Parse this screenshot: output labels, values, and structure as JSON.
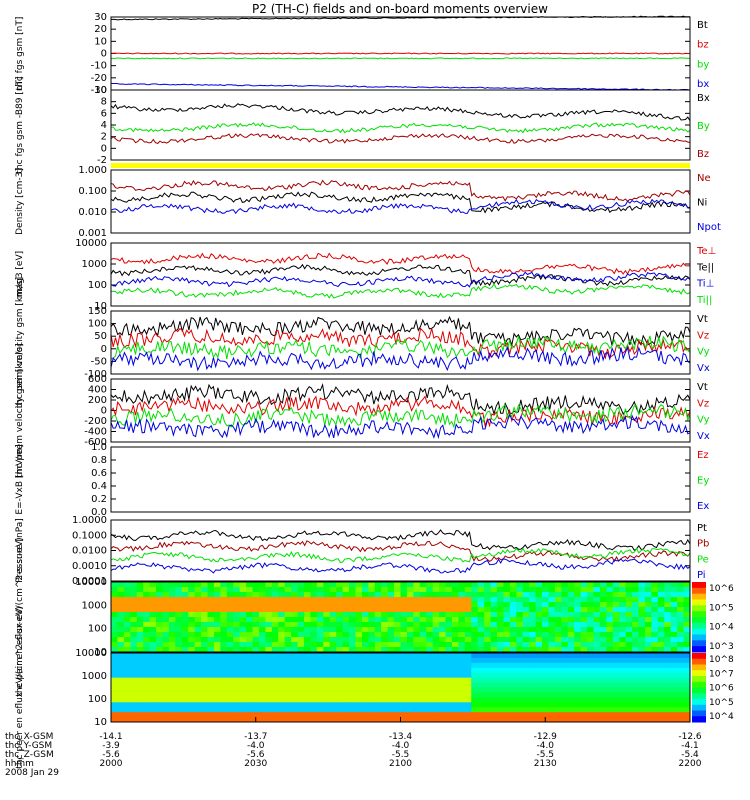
{
  "title": "P2 (TH-C) fields and on-board moments overview",
  "colors": {
    "black": "#000000",
    "red": "#e00000",
    "green": "#00e000",
    "blue": "#0000e0",
    "darkred": "#a00000",
    "yellow": "#ffff00"
  },
  "x_axis": {
    "row_labels": [
      "thc_X-GSM",
      "thc_Y-GSM",
      "thc_Z-GSM",
      "hhmm",
      "2008 Jan 29"
    ],
    "ticks": [
      {
        "vals": [
          "-14.1",
          "-3.9",
          "-5.6",
          "2000"
        ]
      },
      {
        "vals": [
          "-13.7",
          "-4.0",
          "-5.6",
          "2030"
        ]
      },
      {
        "vals": [
          "-13.4",
          "-4.0",
          "-5.5",
          "2100"
        ]
      },
      {
        "vals": [
          "-12.9",
          "-4.0",
          "-5.5",
          "2130"
        ]
      },
      {
        "vals": [
          "-12.6",
          "-4.1",
          "-5.4",
          "2200"
        ]
      }
    ]
  },
  "chart_data": [
    {
      "type": "line",
      "ylabel": "thc fgs gsm [nT]",
      "ylim": [
        -30,
        30
      ],
      "yticks": [
        "30",
        "20",
        "10",
        "0",
        "-10",
        "-20",
        "-30"
      ],
      "series": [
        {
          "name": "Bt",
          "color": "black",
          "level": 28
        },
        {
          "name": "bz",
          "color": "red",
          "level": 0
        },
        {
          "name": "by",
          "color": "green",
          "level": -4
        },
        {
          "name": "bx",
          "color": "blue",
          "level": -25
        }
      ]
    },
    {
      "type": "line",
      "ylabel": "thc fgs gsm -B89 [nT]",
      "ylim": [
        -3,
        10
      ],
      "yticks": [
        "10",
        "8",
        "6",
        "4",
        "2",
        "0",
        "-2"
      ],
      "series": [
        {
          "name": "Bx",
          "color": "black",
          "level": 7
        },
        {
          "name": "By",
          "color": "green",
          "level": 3
        },
        {
          "name": "Bz",
          "color": "darkred",
          "level": 1
        }
      ]
    },
    {
      "type": "line",
      "ylabel": "Density [cm-3]",
      "scale": "log",
      "ylim": [
        0.001,
        1
      ],
      "yticks": [
        "1.000",
        "0.100",
        "0.010",
        "0.001"
      ],
      "series": [
        {
          "name": "Ne",
          "color": "darkred"
        },
        {
          "name": "Ni",
          "color": "black"
        },
        {
          "name": "Npot",
          "color": "blue"
        }
      ]
    },
    {
      "type": "line",
      "ylabel": "mag3 [eV]",
      "scale": "log",
      "ylim": [
        10,
        10000
      ],
      "yticks": [
        "10000",
        "1000",
        "100",
        "10"
      ],
      "series": [
        {
          "name": "Te⊥",
          "color": "red"
        },
        {
          "name": "Te||",
          "color": "black"
        },
        {
          "name": "Ti⊥",
          "color": "blue"
        },
        {
          "name": "Ti||",
          "color": "green"
        }
      ]
    },
    {
      "type": "line",
      "ylabel": "thc peim velocity gsm [km/s]",
      "ylim": [
        -100,
        150
      ],
      "yticks": [
        "150",
        "100",
        "50",
        "0",
        "-50",
        "-100"
      ],
      "series": [
        {
          "name": "Vt",
          "color": "black"
        },
        {
          "name": "Vz",
          "color": "red"
        },
        {
          "name": "Vy",
          "color": "green"
        },
        {
          "name": "Vx",
          "color": "blue"
        }
      ]
    },
    {
      "type": "line",
      "ylabel": "thc peem velocity gsm [km/s]",
      "ylim": [
        -600,
        600
      ],
      "yticks": [
        "600",
        "400",
        "200",
        "0",
        "-200",
        "-400",
        "-600"
      ],
      "series": [
        {
          "name": "Vt",
          "color": "black"
        },
        {
          "name": "Vz",
          "color": "red"
        },
        {
          "name": "Vy",
          "color": "green"
        },
        {
          "name": "Vx",
          "color": "blue"
        }
      ]
    },
    {
      "type": "line",
      "ylabel": "E=-VxB [mV/m]",
      "ylim": [
        0,
        1
      ],
      "yticks": [
        "1.0",
        "0.8",
        "0.6",
        "0.4",
        "0.2",
        "0.0"
      ],
      "series": [
        {
          "name": "Ez",
          "color": "red"
        },
        {
          "name": "Ey",
          "color": "green"
        },
        {
          "name": "Ex",
          "color": "blue"
        }
      ]
    },
    {
      "type": "line",
      "ylabel": "Pressure [nPa]",
      "scale": "log",
      "ylim": [
        0.0001,
        1
      ],
      "yticks": [
        "1.0000",
        "0.1000",
        "0.0100",
        "0.0010",
        "0.0001"
      ],
      "series": [
        {
          "name": "Pt",
          "color": "black"
        },
        {
          "name": "Pb",
          "color": "darkred"
        },
        {
          "name": "Pe",
          "color": "green"
        },
        {
          "name": "Pi",
          "color": "blue"
        }
      ]
    },
    {
      "type": "heatmap",
      "ylabel": "thc peir en eflux eV/(cm^2-s-sr-eV)",
      "scale": "log",
      "ylim": [
        10,
        10000
      ],
      "yticks": [
        "10000",
        "1000",
        "100",
        "10"
      ],
      "colorbar": [
        "10^6",
        "10^5",
        "10^4",
        "10^3"
      ]
    },
    {
      "type": "heatmap",
      "ylabel": "thc peer en eflux eV/(cm^2-s-sr-eV)",
      "scale": "log",
      "ylim": [
        10,
        10000
      ],
      "yticks": [
        "10000",
        "1000",
        "100",
        "10"
      ],
      "colorbar": [
        "10^8",
        "10^7",
        "10^6",
        "10^5",
        "10^4"
      ]
    }
  ]
}
